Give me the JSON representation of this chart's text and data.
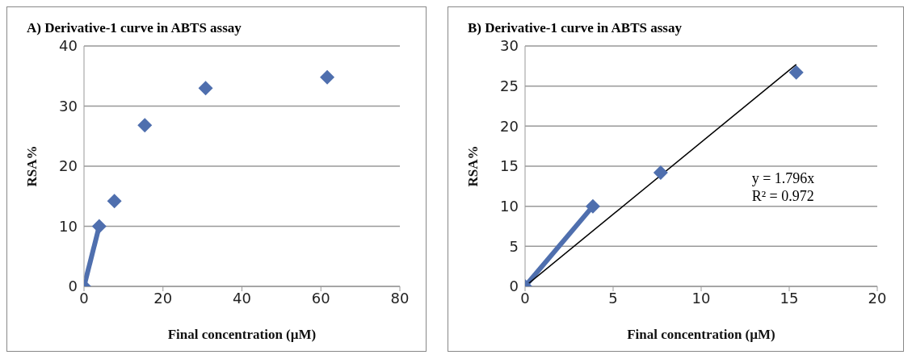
{
  "chart_data": [
    {
      "type": "scatter",
      "title": "A) Derivative-1 curve in ABTS assay",
      "xlabel": "Final concentration (µM)",
      "ylabel": "RSA%",
      "xlim": [
        0,
        80
      ],
      "xticks": [
        0,
        20,
        40,
        60,
        80
      ],
      "ylim": [
        0,
        40
      ],
      "yticks": [
        0,
        10,
        20,
        30,
        40
      ],
      "grid": "y",
      "legend": false,
      "marker": "diamond",
      "series": [
        {
          "color": "#4f6fae",
          "x": [
            0,
            3.85,
            7.7,
            15.4,
            30.8,
            61.6
          ],
          "values": [
            0,
            10,
            14.2,
            26.8,
            33,
            34.8
          ]
        },
        {
          "type": "line",
          "color": "#4f6fae",
          "x": [
            0,
            3.85
          ],
          "values": [
            0,
            10
          ],
          "marker": "none"
        }
      ]
    },
    {
      "type": "scatter",
      "title": "B) Derivative-1 curve in ABTS assay",
      "xlabel": "Final concentration (µM)",
      "ylabel": "RSA%",
      "xlim": [
        0,
        20
      ],
      "xticks": [
        0,
        5,
        10,
        15,
        20
      ],
      "ylim": [
        0,
        30
      ],
      "yticks": [
        0,
        5,
        10,
        15,
        20,
        25,
        30
      ],
      "grid": "y",
      "legend": false,
      "marker": "diamond",
      "annotations": [
        "y = 1.796x",
        "R² = 0.972"
      ],
      "series": [
        {
          "color": "#4f6fae",
          "x": [
            0,
            3.85,
            7.7,
            15.4
          ],
          "values": [
            0,
            10,
            14.2,
            26.7
          ]
        },
        {
          "type": "line",
          "color": "#4f6fae",
          "x": [
            0,
            3.85
          ],
          "values": [
            0,
            10
          ],
          "marker": "none"
        },
        {
          "type": "line",
          "color": "#000000",
          "x": [
            0,
            15.4
          ],
          "values": [
            0,
            27.7
          ],
          "marker": "none"
        }
      ]
    }
  ]
}
